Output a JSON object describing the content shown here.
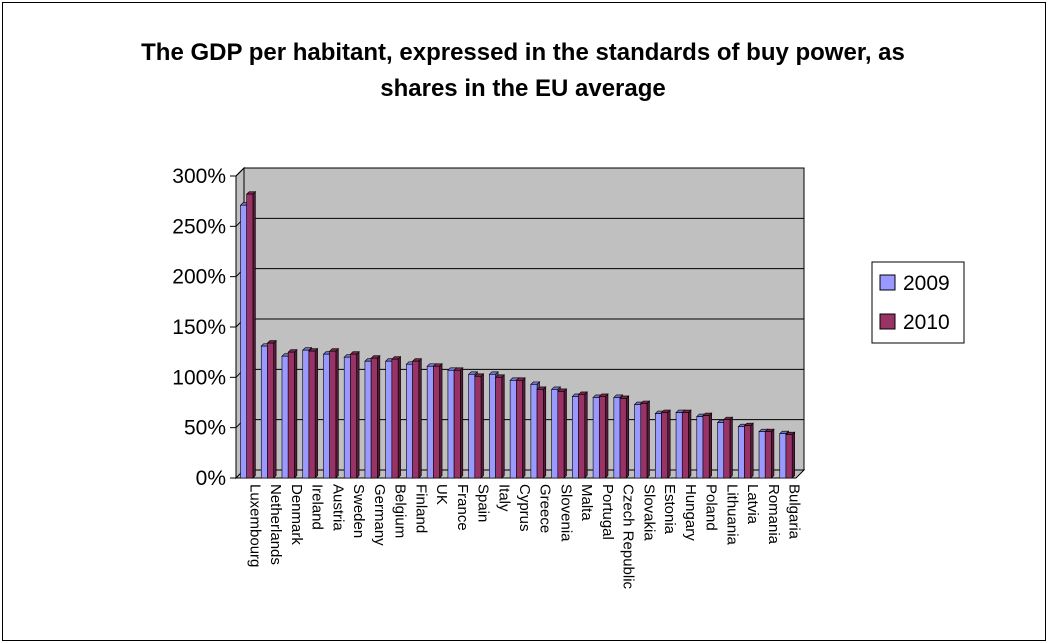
{
  "chart_data": {
    "type": "bar",
    "title": "The GDP per habitant, expressed in the standards of buy power, as shares in the EU average",
    "xlabel": "",
    "ylabel": "",
    "ylim": [
      0,
      300
    ],
    "yticks": [
      "0%",
      "50%",
      "100%",
      "150%",
      "200%",
      "250%",
      "300%"
    ],
    "grid": true,
    "legend_position": "right",
    "categories": [
      "Luxembourg",
      "Netherlands",
      "Denmark",
      "Ireland",
      "Austria",
      "Sweden",
      "Germany",
      "Belgium",
      "Finland",
      "UK",
      "France",
      "Spain",
      "Italy",
      "Cyprus",
      "Greece",
      "Slovenia",
      "Malta",
      "Portugal",
      "Czech Republic",
      "Slovakia",
      "Estonia",
      "Hungary",
      "Poland",
      "Lithuania",
      "Latvia",
      "Romania",
      "Bulgaria"
    ],
    "series": [
      {
        "name": "2009",
        "color": "#9999FF",
        "values": [
          271,
          131,
          121,
          127,
          123,
          120,
          116,
          116,
          113,
          111,
          107,
          103,
          103,
          97,
          93,
          88,
          81,
          80,
          80,
          73,
          64,
          65,
          61,
          55,
          51,
          46,
          44
        ]
      },
      {
        "name": "2010",
        "color": "#993366",
        "values": [
          282,
          134,
          125,
          126,
          126,
          123,
          119,
          118,
          116,
          111,
          107,
          101,
          100,
          97,
          88,
          86,
          83,
          81,
          79,
          74,
          65,
          65,
          62,
          58,
          52,
          46,
          43
        ]
      }
    ],
    "colors": {
      "plot_background": "#C0C0C0",
      "gridline": "#000000"
    }
  }
}
